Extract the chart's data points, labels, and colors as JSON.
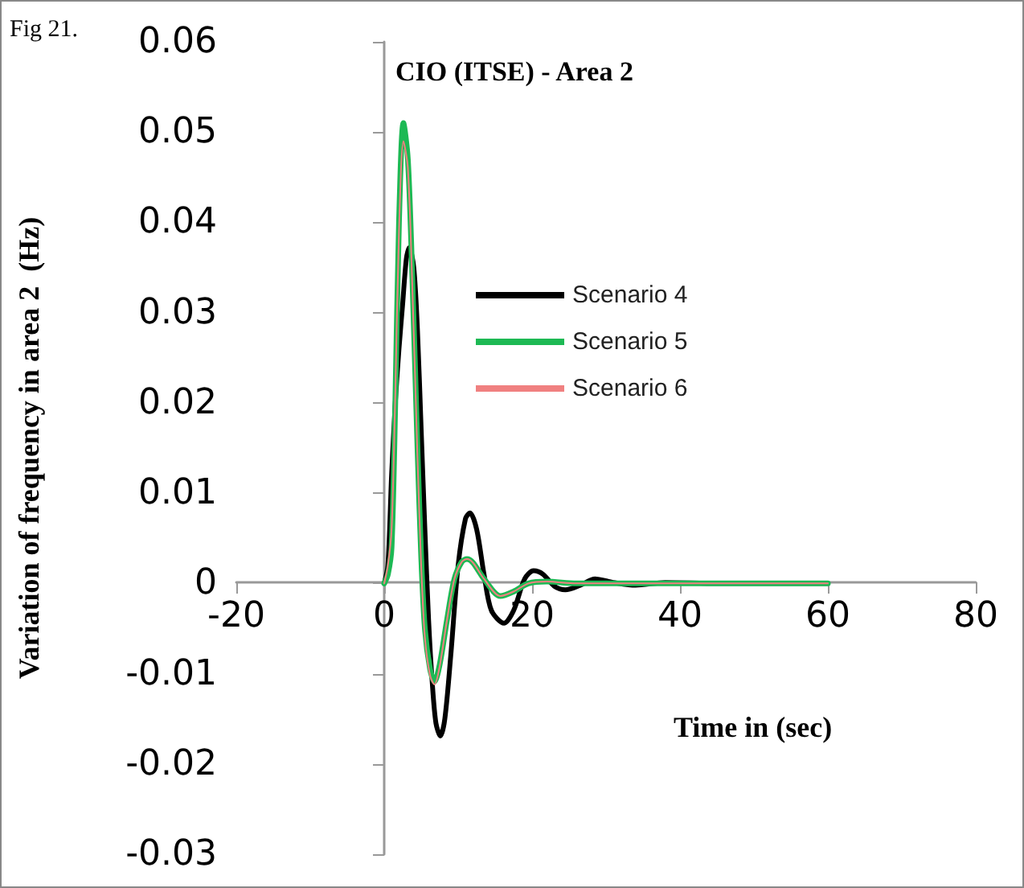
{
  "chart_data": {
    "type": "line",
    "title": "CIO (ITSE) - Area 2",
    "xlabel": "Time in (sec)",
    "ylabel": "Variation of frequency in area 2  (Hz)",
    "annotations": [
      "Fig 21."
    ],
    "xlim": [
      -20,
      80
    ],
    "xticks": [
      -20,
      0,
      20,
      40,
      60,
      80
    ],
    "ylim": [
      -0.03,
      0.06
    ],
    "yticks": [
      -0.03,
      -0.02,
      -0.01,
      0,
      0.01,
      0.02,
      0.03,
      0.04,
      0.05,
      0.06
    ],
    "legend": "top right",
    "marker": "none",
    "line_style": "solid",
    "series": [
      {
        "name": "Scenario 4",
        "color": "#000000",
        "x": [
          0,
          0.5,
          1,
          1.5,
          2,
          2.5,
          3,
          3.4,
          4,
          4.5,
          5,
          5.5,
          6,
          6.5,
          7,
          7.6,
          8.2,
          9,
          10,
          11,
          11.6,
          12.5,
          13.5,
          14.5,
          16.2,
          17.5,
          19,
          20.2,
          21.5,
          23,
          24.5,
          26.5,
          28.5,
          31,
          34,
          38,
          45,
          60
        ],
        "values": [
          0,
          0.002,
          0.012,
          0.02,
          0.026,
          0.031,
          0.036,
          0.0372,
          0.035,
          0.028,
          0.017,
          0.006,
          -0.004,
          -0.011,
          -0.0155,
          -0.0169,
          -0.015,
          -0.008,
          0.002,
          0.0072,
          0.0078,
          0.006,
          0.001,
          -0.003,
          -0.0044,
          -0.003,
          0.0005,
          0.0014,
          0.001,
          -0.0003,
          -0.0007,
          -0.0002,
          0.0005,
          0.0001,
          -0.0002,
          0.0001,
          0,
          0
        ]
      },
      {
        "name": "Scenario 5",
        "color": "#1db954",
        "x": [
          0,
          0.5,
          1,
          1.5,
          2,
          2.6,
          3.2,
          3.8,
          4.5,
          5,
          5.5,
          6.2,
          6.8,
          7.5,
          8.5,
          9.5,
          10.5,
          11.2,
          12,
          13.5,
          15.7,
          17.5,
          19.5,
          22,
          26,
          60
        ],
        "values": [
          0,
          0.001,
          0.004,
          0.02,
          0.04,
          0.051,
          0.047,
          0.034,
          0.015,
          0.003,
          -0.005,
          -0.0095,
          -0.0109,
          -0.009,
          -0.004,
          0.0005,
          0.0024,
          0.0027,
          0.0023,
          0.0005,
          -0.0014,
          -0.0009,
          0,
          0.0002,
          0,
          0
        ]
      },
      {
        "name": "Scenario 6",
        "color": "#f08080",
        "x": [
          0,
          0.5,
          1,
          1.5,
          2,
          2.6,
          3.2,
          3.8,
          4.5,
          5,
          5.5,
          6.2,
          6.8,
          7.5,
          8.5,
          9.5,
          10.5,
          11.2,
          12,
          13.5,
          15.7,
          17.5,
          19.5,
          22,
          26,
          60
        ],
        "values": [
          0,
          0.002,
          0.006,
          0.021,
          0.039,
          0.049,
          0.046,
          0.033,
          0.014,
          0.002,
          -0.006,
          -0.0102,
          -0.0112,
          -0.0092,
          -0.004,
          0.0005,
          0.0024,
          0.0027,
          0.0023,
          0.0005,
          -0.0014,
          -0.0009,
          0,
          0.0002,
          0,
          0
        ]
      }
    ]
  }
}
